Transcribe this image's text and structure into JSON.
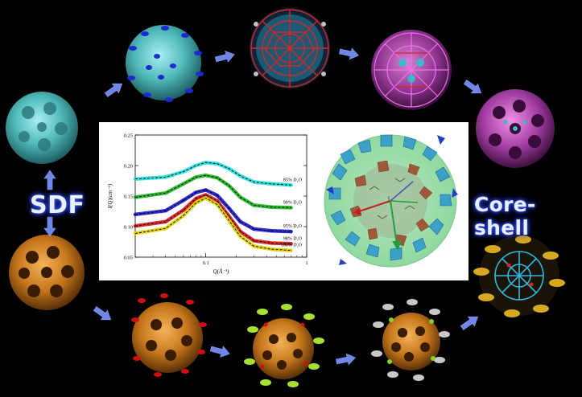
{
  "labels": {
    "sdf": "SDF",
    "core_shell": "Core-shell"
  },
  "colors": {
    "background": "#000000",
    "arrow": "#6f86e8",
    "label_glow": "#3a5dff",
    "cluster_teal": "#5cc0c0",
    "cluster_orange": "#c8781c",
    "cluster_magenta": "#b040b0"
  },
  "clusters": [
    {
      "name": "teal-cluster",
      "color": "#5cc0c0"
    },
    {
      "name": "teal-blue-cluster",
      "color": "#4aa8ac"
    },
    {
      "name": "red-wireframe-cluster",
      "color": "#c83030"
    },
    {
      "name": "magenta-wireframe-cluster",
      "color": "#b040b0"
    },
    {
      "name": "magenta-cage-cluster",
      "color": "#b24aa0"
    },
    {
      "name": "orange-cluster",
      "color": "#c8781c"
    },
    {
      "name": "orange-red-cluster",
      "color": "#c0701c"
    },
    {
      "name": "orange-green-cluster",
      "color": "#b8761e"
    },
    {
      "name": "orange-white-cluster",
      "color": "#b07020"
    },
    {
      "name": "yellow-blue-cluster",
      "color": "#c8a020"
    }
  ],
  "chart_data": {
    "type": "line",
    "xlabel": "Q(Å⁻¹)",
    "ylabel": "I(Q)(cm⁻¹)",
    "xscale": "log",
    "xlim": [
      0.02,
      1
    ],
    "ylim": [
      0.05,
      0.25
    ],
    "xticks": [
      {
        "v": 0.1,
        "label": "0.1"
      },
      {
        "v": 1,
        "label": "1"
      }
    ],
    "yticks": [
      {
        "v": 0.05,
        "label": "0.05"
      },
      {
        "v": 0.1,
        "label": "0.10"
      },
      {
        "v": 0.15,
        "label": "0.15"
      },
      {
        "v": 0.2,
        "label": "0.20"
      },
      {
        "v": 0.25,
        "label": "0.25"
      }
    ],
    "x": [
      0.02,
      0.04,
      0.06,
      0.08,
      0.1,
      0.13,
      0.17,
      0.22,
      0.3,
      0.45,
      0.7
    ],
    "series": [
      {
        "label": "85% D₂O",
        "color": "#22dede",
        "values": [
          0.178,
          0.181,
          0.19,
          0.2,
          0.205,
          0.203,
          0.195,
          0.183,
          0.173,
          0.17,
          0.168
        ]
      },
      {
        "label": "90% D₂O",
        "color": "#18b418",
        "values": [
          0.148,
          0.155,
          0.17,
          0.181,
          0.184,
          0.18,
          0.167,
          0.148,
          0.135,
          0.132,
          0.131
        ]
      },
      {
        "label": "95% D₂O",
        "color": "#1818c8",
        "values": [
          0.12,
          0.126,
          0.143,
          0.156,
          0.16,
          0.151,
          0.13,
          0.108,
          0.096,
          0.093,
          0.092
        ]
      },
      {
        "label": "98% D₂O",
        "color": "#d01818",
        "values": [
          0.101,
          0.108,
          0.127,
          0.146,
          0.152,
          0.142,
          0.117,
          0.092,
          0.077,
          0.073,
          0.072
        ]
      },
      {
        "label": "100% D₂O",
        "color": "#e0d000",
        "values": [
          0.089,
          0.097,
          0.118,
          0.139,
          0.147,
          0.136,
          0.11,
          0.084,
          0.068,
          0.063,
          0.061
        ]
      }
    ]
  }
}
